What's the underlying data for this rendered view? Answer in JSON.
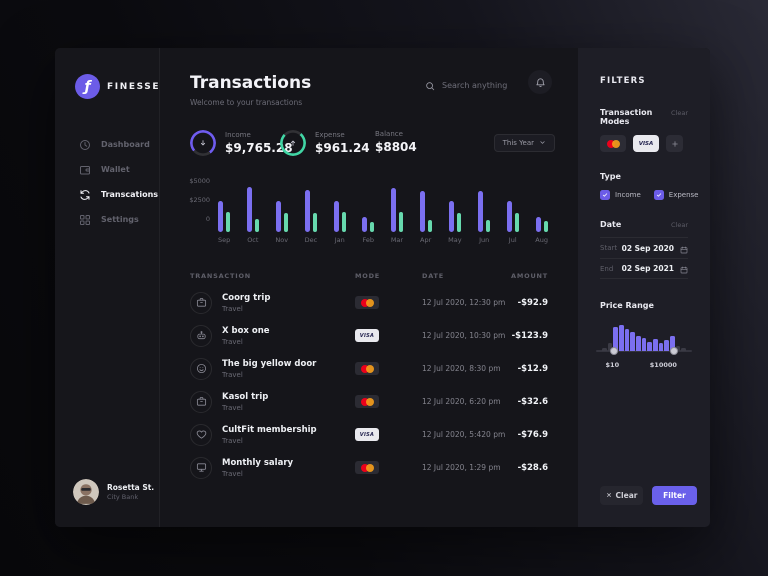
{
  "theme": {
    "accent": "#6c5ce7",
    "income_color": "#7b6ff0",
    "expense_color": "#67d9ae",
    "mastercard_red": "#EB001B",
    "mastercard_orange": "#F79E1B",
    "histogram_active": "#7b6ff0",
    "histogram_inactive": "#3b3b45"
  },
  "sidebar": {
    "brand": "FINESSE",
    "logo_glyph": "ƒ",
    "items": [
      {
        "label": "Dashboard",
        "icon": "dashboard",
        "active": false
      },
      {
        "label": "Wallet",
        "icon": "wallet",
        "active": false
      },
      {
        "label": "Transcations",
        "icon": "transactions",
        "active": true
      },
      {
        "label": "Settings",
        "icon": "settings",
        "active": false
      }
    ],
    "user": {
      "name": "Rosetta St.",
      "bank": "City Bank"
    }
  },
  "header": {
    "title": "Transactions",
    "subtitle": "Welcome to your transactions",
    "search_placeholder": "Search anything"
  },
  "stats": {
    "income_label": "Income",
    "income_value": "$9,765.28",
    "expense_label": "Expense",
    "expense_value": "$961.24",
    "balance_label": "Balance",
    "balance_value": "$8804",
    "period": "This Year"
  },
  "chart_data": {
    "type": "bar",
    "categories": [
      "Sep",
      "Oct",
      "Nov",
      "Dec",
      "Jan",
      "Feb",
      "Mar",
      "Apr",
      "May",
      "Jun",
      "Jul",
      "Aug"
    ],
    "series": [
      {
        "name": "Income",
        "values": [
          4000,
          5900,
          4100,
          5500,
          4000,
          2000,
          5700,
          5400,
          4000,
          5400,
          4000,
          2000
        ]
      },
      {
        "name": "Expense",
        "values": [
          2600,
          1700,
          2500,
          2500,
          2600,
          1300,
          2600,
          1500,
          2500,
          1600,
          2500,
          1400
        ]
      }
    ],
    "ylim": [
      0,
      6000
    ],
    "yticks": [
      {
        "label": "$5000",
        "value": 5000
      },
      {
        "label": "$2500",
        "value": 2500
      },
      {
        "label": "0",
        "value": 0
      }
    ],
    "grid": false,
    "legend": "none"
  },
  "table": {
    "headers": [
      "TRANSACTION",
      "MODE",
      "DATE",
      "AMOUNT"
    ],
    "rows": [
      {
        "name": "Coorg trip",
        "category": "Travel",
        "icon": "briefcase",
        "mode": "mastercard",
        "date": "12 Jul 2020, 12:30 pm",
        "amount": "-$92.9"
      },
      {
        "name": "X box one",
        "category": "Travel",
        "icon": "robot",
        "mode": "visa",
        "date": "12 Jul 2020, 10:30 pm",
        "amount": "-$123.9"
      },
      {
        "name": "The big yellow door",
        "category": "Travel",
        "icon": "smiley",
        "mode": "mastercard",
        "date": "12 Jul 2020, 8:30 pm",
        "amount": "-$12.9"
      },
      {
        "name": "Kasol trip",
        "category": "Travel",
        "icon": "briefcase",
        "mode": "mastercard",
        "date": "12 Jul 2020, 6:20 pm",
        "amount": "-$32.6"
      },
      {
        "name": "CultFit membership",
        "category": "Travel",
        "icon": "heart",
        "mode": "visa",
        "date": "12 Jul 2020, 5:420 pm",
        "amount": "-$76.9"
      },
      {
        "name": "Monthly salary",
        "category": "Travel",
        "icon": "monitor",
        "mode": "mastercard",
        "date": "12 Jul 2020, 1:29 pm",
        "amount": "-$28.6"
      }
    ]
  },
  "filters": {
    "heading": "FILTERS",
    "modes": {
      "title": "Transaction Modes",
      "clear": "Clear",
      "chips": [
        "mastercard",
        "visa",
        "add"
      ]
    },
    "type": {
      "title": "Type",
      "options": [
        {
          "label": "Income",
          "checked": true
        },
        {
          "label": "Expense",
          "checked": true
        }
      ]
    },
    "date": {
      "title": "Date",
      "clear": "Clear",
      "start_label": "Start",
      "start_value": "02 Sep 2020",
      "end_label": "End",
      "end_value": "02 Sep 2021"
    },
    "price_range": {
      "title": "Price Range",
      "min_label": "$10",
      "max_label": "$10000",
      "histogram": [
        12,
        30,
        92,
        100,
        84,
        74,
        58,
        50,
        36,
        48,
        30,
        44,
        56,
        20,
        10
      ],
      "active_range": [
        2,
        12
      ],
      "handle_percents": [
        16,
        84
      ]
    },
    "actions": {
      "clear": "Clear",
      "filter": "Filter"
    }
  }
}
